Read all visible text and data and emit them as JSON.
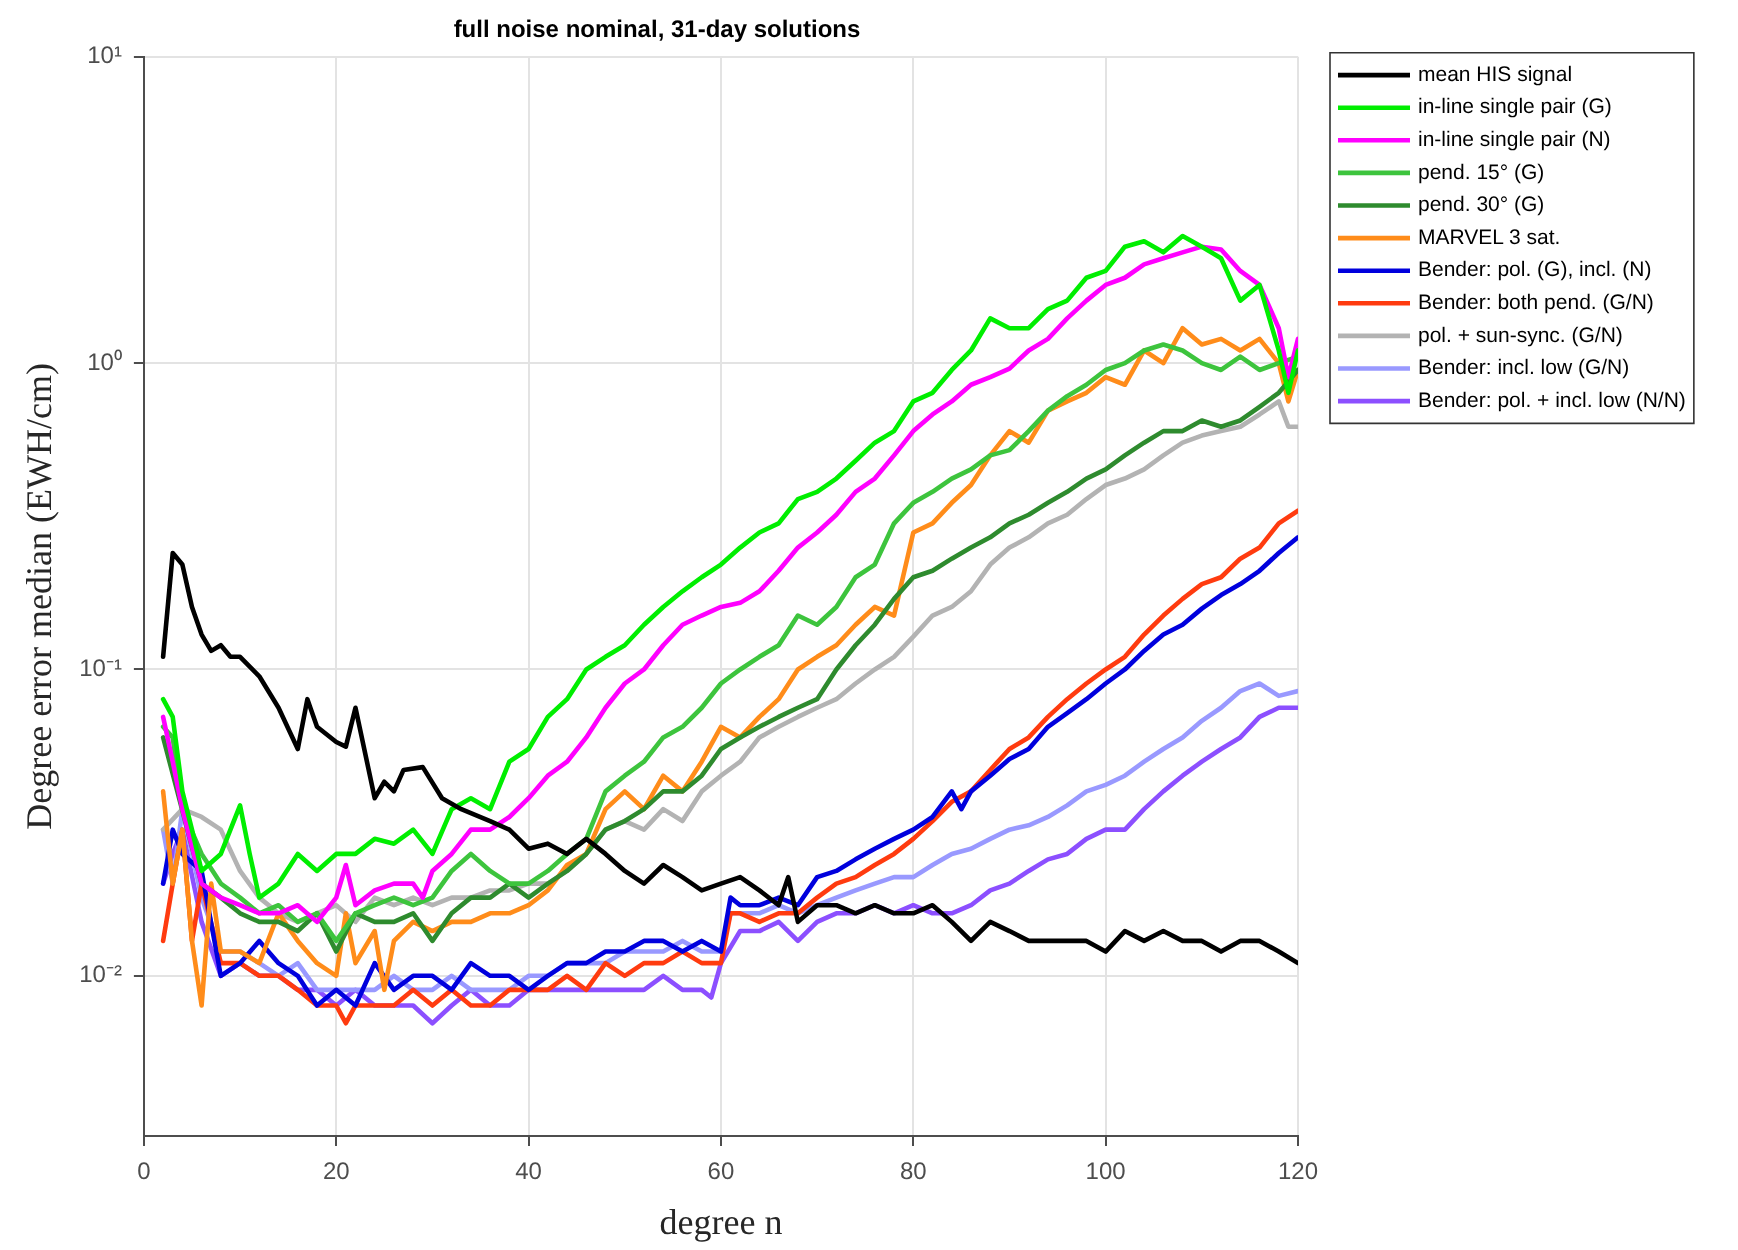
{
  "chart_data": {
    "type": "line",
    "title": "full noise nominal, 31-day solutions",
    "xlabel": "degree n",
    "ylabel": "Degree error median (EWH/cm)",
    "log": "y",
    "grid": true,
    "legend": "top right",
    "marker": "none",
    "line_style": "solid",
    "xlim": [
      0,
      120
    ],
    "xticks": [
      0,
      20,
      40,
      60,
      80,
      100,
      120
    ],
    "ylim": [
      0.003,
      10
    ],
    "yticks": [
      {
        "value": 0.01,
        "label": "10⁻²"
      },
      {
        "value": 0.1,
        "label": "10⁻¹"
      },
      {
        "value": 1,
        "label": "10⁰"
      },
      {
        "value": 10,
        "label": "10¹"
      }
    ],
    "series": [
      {
        "name": "mean HIS signal",
        "color": "#000000",
        "x": [
          2,
          3,
          4,
          5,
          6,
          7,
          8,
          9,
          10,
          12,
          14,
          16,
          17,
          18,
          20,
          21,
          22,
          24,
          25,
          26,
          27,
          29,
          31,
          33,
          36,
          38,
          40,
          42,
          44,
          46,
          48,
          50,
          52,
          54,
          56,
          58,
          60,
          62,
          64,
          66,
          67,
          68,
          70,
          72,
          74,
          76,
          78,
          80,
          82,
          84,
          86,
          88,
          90,
          92,
          94,
          96,
          98,
          100,
          102,
          104,
          106,
          108,
          110,
          112,
          114,
          116,
          118,
          120
        ],
        "values": [
          0.11,
          0.24,
          0.22,
          0.16,
          0.13,
          0.115,
          0.12,
          0.11,
          0.11,
          0.095,
          0.075,
          0.055,
          0.08,
          0.065,
          0.058,
          0.056,
          0.075,
          0.038,
          0.043,
          0.04,
          0.047,
          0.048,
          0.038,
          0.035,
          0.032,
          0.03,
          0.026,
          0.027,
          0.025,
          0.028,
          0.025,
          0.022,
          0.02,
          0.023,
          0.021,
          0.019,
          0.02,
          0.021,
          0.019,
          0.017,
          0.021,
          0.015,
          0.017,
          0.017,
          0.016,
          0.017,
          0.016,
          0.016,
          0.017,
          0.015,
          0.013,
          0.015,
          0.014,
          0.013,
          0.013,
          0.013,
          0.013,
          0.012,
          0.014,
          0.013,
          0.014,
          0.013,
          0.013,
          0.012,
          0.013,
          0.013,
          0.012,
          0.011
        ]
      },
      {
        "name": "in-line single pair (G)",
        "color": "#00ee00",
        "x": [
          2,
          3,
          4,
          5,
          6,
          8,
          10,
          11,
          12,
          14,
          16,
          18,
          20,
          22,
          24,
          26,
          28,
          30,
          32,
          34,
          36,
          38,
          40,
          42,
          44,
          46,
          48,
          50,
          52,
          54,
          56,
          58,
          60,
          62,
          64,
          66,
          68,
          70,
          72,
          74,
          76,
          78,
          80,
          82,
          84,
          86,
          88,
          90,
          92,
          94,
          96,
          98,
          100,
          102,
          104,
          106,
          108,
          110,
          112,
          114,
          116,
          118,
          119,
          120
        ],
        "values": [
          0.08,
          0.07,
          0.04,
          0.03,
          0.022,
          0.025,
          0.036,
          0.025,
          0.018,
          0.02,
          0.025,
          0.022,
          0.025,
          0.025,
          0.028,
          0.027,
          0.03,
          0.025,
          0.035,
          0.038,
          0.035,
          0.05,
          0.055,
          0.07,
          0.08,
          0.1,
          0.11,
          0.12,
          0.14,
          0.16,
          0.18,
          0.2,
          0.22,
          0.25,
          0.28,
          0.3,
          0.36,
          0.38,
          0.42,
          0.48,
          0.55,
          0.6,
          0.75,
          0.8,
          0.95,
          1.1,
          1.4,
          1.3,
          1.3,
          1.5,
          1.6,
          1.9,
          2,
          2.4,
          2.5,
          2.3,
          2.6,
          2.4,
          2.2,
          1.6,
          1.8,
          1.1,
          0.8,
          1.1
        ]
      },
      {
        "name": "in-line single pair (N)",
        "color": "#ff00ff",
        "x": [
          2,
          3,
          4,
          6,
          8,
          10,
          12,
          14,
          16,
          18,
          20,
          21,
          22,
          24,
          26,
          28,
          29,
          30,
          32,
          34,
          36,
          38,
          40,
          42,
          44,
          46,
          48,
          50,
          52,
          54,
          56,
          58,
          60,
          62,
          64,
          66,
          68,
          70,
          72,
          74,
          76,
          78,
          80,
          82,
          84,
          86,
          88,
          90,
          92,
          94,
          96,
          98,
          100,
          102,
          104,
          106,
          108,
          110,
          112,
          114,
          116,
          118,
          119,
          120
        ],
        "values": [
          0.07,
          0.05,
          0.035,
          0.02,
          0.018,
          0.017,
          0.016,
          0.016,
          0.017,
          0.015,
          0.018,
          0.023,
          0.017,
          0.019,
          0.02,
          0.02,
          0.018,
          0.022,
          0.025,
          0.03,
          0.03,
          0.033,
          0.038,
          0.045,
          0.05,
          0.06,
          0.075,
          0.09,
          0.1,
          0.12,
          0.14,
          0.15,
          0.16,
          0.165,
          0.18,
          0.21,
          0.25,
          0.28,
          0.32,
          0.38,
          0.42,
          0.5,
          0.6,
          0.68,
          0.75,
          0.85,
          0.9,
          0.96,
          1.1,
          1.2,
          1.4,
          1.6,
          1.8,
          1.9,
          2.1,
          2.2,
          2.3,
          2.4,
          2.35,
          2,
          1.8,
          1.3,
          0.9,
          1.2
        ]
      },
      {
        "name": "pend. 15° (G)",
        "color": "#3dc43d",
        "x": [
          2,
          3,
          4,
          6,
          8,
          10,
          12,
          14,
          16,
          18,
          20,
          22,
          24,
          26,
          28,
          30,
          32,
          34,
          36,
          38,
          40,
          42,
          44,
          46,
          48,
          50,
          52,
          54,
          56,
          58,
          60,
          62,
          64,
          66,
          68,
          70,
          72,
          74,
          76,
          78,
          80,
          82,
          84,
          86,
          88,
          90,
          92,
          94,
          96,
          98,
          100,
          102,
          104,
          106,
          108,
          110,
          112,
          114,
          116,
          118,
          120
        ],
        "values": [
          0.065,
          0.06,
          0.035,
          0.025,
          0.02,
          0.018,
          0.016,
          0.017,
          0.015,
          0.016,
          0.013,
          0.016,
          0.017,
          0.018,
          0.017,
          0.018,
          0.022,
          0.025,
          0.022,
          0.02,
          0.02,
          0.022,
          0.025,
          0.028,
          0.04,
          0.045,
          0.05,
          0.06,
          0.065,
          0.075,
          0.09,
          0.1,
          0.11,
          0.12,
          0.15,
          0.14,
          0.16,
          0.2,
          0.22,
          0.3,
          0.35,
          0.38,
          0.42,
          0.45,
          0.5,
          0.52,
          0.6,
          0.7,
          0.78,
          0.85,
          0.95,
          1,
          1.1,
          1.15,
          1.1,
          1,
          0.95,
          1.05,
          0.95,
          1,
          1.05
        ]
      },
      {
        "name": "pend. 30° (G)",
        "color": "#2e8b2e",
        "x": [
          2,
          6,
          8,
          10,
          12,
          14,
          16,
          18,
          20,
          22,
          24,
          26,
          28,
          30,
          32,
          34,
          36,
          38,
          40,
          42,
          44,
          46,
          48,
          50,
          52,
          54,
          56,
          58,
          60,
          62,
          64,
          66,
          68,
          70,
          72,
          74,
          76,
          78,
          80,
          82,
          84,
          86,
          88,
          90,
          92,
          94,
          96,
          98,
          100,
          102,
          104,
          106,
          108,
          110,
          112,
          114,
          116,
          118,
          120
        ],
        "values": [
          0.06,
          0.02,
          0.018,
          0.016,
          0.015,
          0.015,
          0.014,
          0.016,
          0.012,
          0.016,
          0.015,
          0.015,
          0.016,
          0.013,
          0.016,
          0.018,
          0.018,
          0.02,
          0.018,
          0.02,
          0.022,
          0.025,
          0.03,
          0.032,
          0.035,
          0.04,
          0.04,
          0.045,
          0.055,
          0.06,
          0.065,
          0.07,
          0.075,
          0.08,
          0.1,
          0.12,
          0.14,
          0.17,
          0.2,
          0.21,
          0.23,
          0.25,
          0.27,
          0.3,
          0.32,
          0.35,
          0.38,
          0.42,
          0.45,
          0.5,
          0.55,
          0.6,
          0.6,
          0.65,
          0.62,
          0.65,
          0.72,
          0.8,
          0.95
        ]
      },
      {
        "name": "MARVEL 3 sat.",
        "color": "#ff8c1a",
        "x": [
          2,
          3,
          4,
          5,
          6,
          7,
          8,
          10,
          12,
          14,
          16,
          18,
          20,
          21,
          22,
          24,
          25,
          26,
          28,
          30,
          32,
          34,
          36,
          38,
          40,
          42,
          44,
          46,
          48,
          50,
          52,
          54,
          56,
          58,
          60,
          62,
          64,
          66,
          68,
          70,
          72,
          74,
          76,
          78,
          80,
          82,
          84,
          86,
          88,
          90,
          92,
          94,
          96,
          98,
          100,
          102,
          104,
          106,
          108,
          110,
          112,
          114,
          116,
          118,
          119,
          120
        ],
        "values": [
          0.04,
          0.02,
          0.03,
          0.013,
          0.008,
          0.02,
          0.012,
          0.012,
          0.011,
          0.016,
          0.013,
          0.011,
          0.01,
          0.016,
          0.011,
          0.014,
          0.009,
          0.013,
          0.015,
          0.014,
          0.015,
          0.015,
          0.016,
          0.016,
          0.017,
          0.019,
          0.023,
          0.025,
          0.035,
          0.04,
          0.035,
          0.045,
          0.04,
          0.05,
          0.065,
          0.06,
          0.07,
          0.08,
          0.1,
          0.11,
          0.12,
          0.14,
          0.16,
          0.15,
          0.28,
          0.3,
          0.35,
          0.4,
          0.5,
          0.6,
          0.55,
          0.7,
          0.75,
          0.8,
          0.9,
          0.85,
          1.1,
          1,
          1.3,
          1.15,
          1.2,
          1.1,
          1.2,
          1,
          0.75,
          0.95
        ]
      },
      {
        "name": "Bender: pol. (G), incl. (N)",
        "color": "#0000dd",
        "x": [
          2,
          3,
          4,
          6,
          8,
          10,
          12,
          14,
          16,
          18,
          20,
          22,
          24,
          26,
          28,
          30,
          32,
          34,
          36,
          38,
          40,
          42,
          44,
          46,
          48,
          50,
          52,
          54,
          56,
          58,
          60,
          61,
          62,
          64,
          66,
          68,
          70,
          72,
          74,
          76,
          78,
          80,
          82,
          84,
          85,
          86,
          88,
          90,
          92,
          94,
          96,
          98,
          100,
          102,
          104,
          106,
          108,
          110,
          112,
          114,
          116,
          118,
          120
        ],
        "values": [
          0.02,
          0.03,
          0.025,
          0.022,
          0.01,
          0.011,
          0.013,
          0.011,
          0.01,
          0.008,
          0.009,
          0.008,
          0.011,
          0.009,
          0.01,
          0.01,
          0.009,
          0.011,
          0.01,
          0.01,
          0.009,
          0.01,
          0.011,
          0.011,
          0.012,
          0.012,
          0.013,
          0.013,
          0.012,
          0.013,
          0.012,
          0.018,
          0.017,
          0.017,
          0.018,
          0.017,
          0.021,
          0.022,
          0.024,
          0.026,
          0.028,
          0.03,
          0.033,
          0.04,
          0.035,
          0.04,
          0.045,
          0.051,
          0.055,
          0.065,
          0.072,
          0.08,
          0.09,
          0.1,
          0.115,
          0.13,
          0.14,
          0.158,
          0.175,
          0.19,
          0.21,
          0.24,
          0.27
        ]
      },
      {
        "name": "Bender: both pend. (G/N)",
        "color": "#ff3b0f",
        "x": [
          2,
          3,
          4,
          5,
          6,
          8,
          10,
          12,
          14,
          16,
          18,
          20,
          21,
          22,
          24,
          26,
          28,
          30,
          32,
          34,
          36,
          38,
          40,
          42,
          44,
          46,
          48,
          50,
          52,
          54,
          56,
          58,
          60,
          61,
          62,
          64,
          66,
          68,
          70,
          72,
          74,
          76,
          78,
          80,
          82,
          84,
          86,
          88,
          90,
          92,
          94,
          96,
          98,
          100,
          102,
          104,
          106,
          108,
          110,
          112,
          114,
          116,
          118,
          120
        ],
        "values": [
          0.013,
          0.02,
          0.03,
          0.013,
          0.02,
          0.011,
          0.011,
          0.01,
          0.01,
          0.009,
          0.008,
          0.008,
          0.007,
          0.008,
          0.008,
          0.008,
          0.009,
          0.008,
          0.009,
          0.008,
          0.008,
          0.009,
          0.009,
          0.009,
          0.01,
          0.009,
          0.011,
          0.01,
          0.011,
          0.011,
          0.012,
          0.011,
          0.011,
          0.016,
          0.016,
          0.015,
          0.016,
          0.016,
          0.018,
          0.02,
          0.021,
          0.023,
          0.025,
          0.028,
          0.032,
          0.037,
          0.04,
          0.047,
          0.055,
          0.06,
          0.07,
          0.08,
          0.09,
          0.1,
          0.11,
          0.13,
          0.15,
          0.17,
          0.19,
          0.2,
          0.23,
          0.25,
          0.3,
          0.33
        ]
      },
      {
        "name": "pol. + sun-sync. (G/N)",
        "color": "#b3b3b3",
        "x": [
          2,
          4,
          6,
          8,
          10,
          12,
          14,
          16,
          18,
          20,
          22,
          24,
          26,
          28,
          30,
          32,
          34,
          36,
          38,
          40,
          42,
          44,
          46,
          48,
          50,
          52,
          54,
          56,
          58,
          60,
          62,
          64,
          66,
          68,
          70,
          72,
          74,
          76,
          78,
          80,
          82,
          84,
          86,
          88,
          90,
          92,
          94,
          96,
          98,
          100,
          102,
          104,
          106,
          108,
          110,
          112,
          114,
          116,
          118,
          119,
          120
        ],
        "values": [
          0.03,
          0.035,
          0.033,
          0.03,
          0.022,
          0.018,
          0.016,
          0.015,
          0.016,
          0.017,
          0.015,
          0.018,
          0.017,
          0.018,
          0.017,
          0.018,
          0.018,
          0.019,
          0.019,
          0.02,
          0.02,
          0.022,
          0.025,
          0.03,
          0.032,
          0.03,
          0.035,
          0.032,
          0.04,
          0.045,
          0.05,
          0.06,
          0.065,
          0.07,
          0.075,
          0.08,
          0.09,
          0.1,
          0.11,
          0.128,
          0.15,
          0.16,
          0.18,
          0.22,
          0.25,
          0.27,
          0.3,
          0.32,
          0.36,
          0.4,
          0.42,
          0.45,
          0.5,
          0.55,
          0.58,
          0.6,
          0.62,
          0.68,
          0.75,
          0.62,
          0.62
        ]
      },
      {
        "name": "Bender: incl. low (G/N)",
        "color": "#9999ff",
        "x": [
          2,
          3,
          4,
          6,
          8,
          10,
          12,
          14,
          16,
          18,
          20,
          22,
          24,
          26,
          28,
          30,
          32,
          34,
          36,
          38,
          40,
          42,
          44,
          46,
          48,
          50,
          52,
          54,
          56,
          58,
          60,
          61,
          62,
          64,
          66,
          68,
          70,
          72,
          74,
          76,
          78,
          80,
          82,
          84,
          86,
          88,
          90,
          92,
          94,
          96,
          98,
          100,
          102,
          104,
          106,
          108,
          110,
          112,
          114,
          116,
          118,
          120
        ],
        "values": [
          0.03,
          0.02,
          0.035,
          0.018,
          0.012,
          0.012,
          0.011,
          0.01,
          0.011,
          0.009,
          0.009,
          0.009,
          0.009,
          0.01,
          0.009,
          0.009,
          0.01,
          0.009,
          0.009,
          0.009,
          0.01,
          0.01,
          0.011,
          0.011,
          0.011,
          0.012,
          0.012,
          0.012,
          0.013,
          0.012,
          0.012,
          0.016,
          0.016,
          0.016,
          0.017,
          0.016,
          0.017,
          0.018,
          0.019,
          0.02,
          0.021,
          0.021,
          0.023,
          0.025,
          0.026,
          0.028,
          0.03,
          0.031,
          0.033,
          0.036,
          0.04,
          0.042,
          0.045,
          0.05,
          0.055,
          0.06,
          0.068,
          0.075,
          0.085,
          0.09,
          0.082,
          0.085
        ]
      },
      {
        "name": "Bender: pol. + incl. low (N/N)",
        "color": "#8c4fff",
        "x": [
          2,
          3,
          4,
          6,
          8,
          10,
          12,
          14,
          16,
          18,
          20,
          22,
          24,
          26,
          28,
          30,
          32,
          34,
          36,
          38,
          40,
          42,
          44,
          46,
          48,
          50,
          52,
          54,
          56,
          58,
          59,
          60,
          62,
          64,
          66,
          68,
          70,
          72,
          74,
          76,
          78,
          80,
          82,
          84,
          86,
          88,
          90,
          92,
          94,
          96,
          98,
          100,
          102,
          104,
          106,
          108,
          110,
          112,
          114,
          116,
          118,
          120
        ],
        "values": [
          0.02,
          0.025,
          0.03,
          0.015,
          0.01,
          0.011,
          0.01,
          0.01,
          0.009,
          0.009,
          0.008,
          0.009,
          0.008,
          0.008,
          0.008,
          0.007,
          0.008,
          0.009,
          0.008,
          0.008,
          0.009,
          0.009,
          0.009,
          0.009,
          0.009,
          0.009,
          0.009,
          0.01,
          0.009,
          0.009,
          0.0085,
          0.011,
          0.014,
          0.014,
          0.015,
          0.013,
          0.015,
          0.016,
          0.016,
          0.017,
          0.016,
          0.017,
          0.016,
          0.016,
          0.017,
          0.019,
          0.02,
          0.022,
          0.024,
          0.025,
          0.028,
          0.03,
          0.03,
          0.035,
          0.04,
          0.045,
          0.05,
          0.055,
          0.06,
          0.07,
          0.075,
          0.075
        ]
      }
    ]
  }
}
